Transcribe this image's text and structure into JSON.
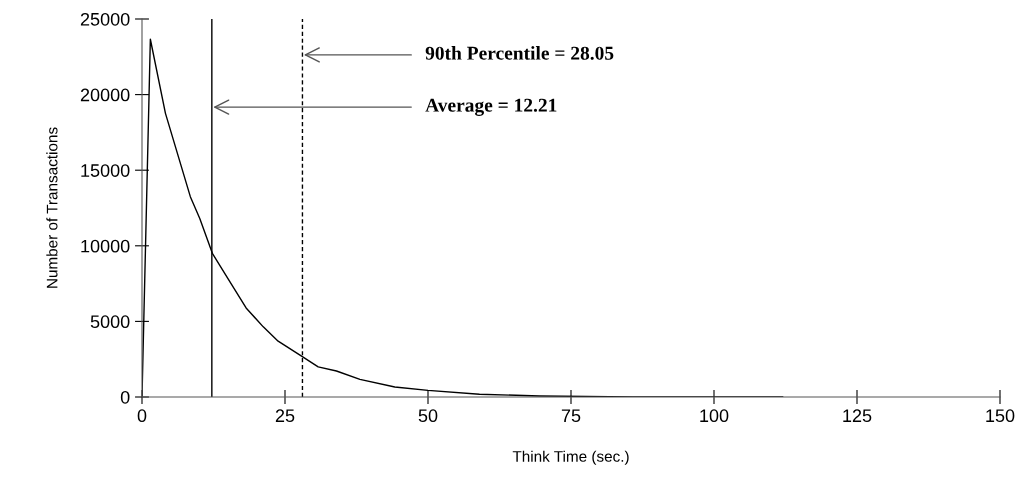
{
  "chart_data": {
    "type": "line",
    "xlabel": "Think Time (sec.)",
    "ylabel": "Number of Transactions",
    "x": [
      0,
      1.46,
      4.1,
      8.45,
      10.1,
      12.3,
      15.0,
      18.2,
      21.2,
      23.8,
      28.1,
      30.8,
      34.0,
      38.1,
      44.2,
      50,
      59,
      69.5,
      85.8,
      112
    ],
    "series": [
      {
        "color": "#000000",
        "values": [
          0,
          23660,
          18760,
          13250,
          11800,
          9500,
          7840,
          5890,
          4640,
          3690,
          2650,
          1990,
          1720,
          1170,
          660,
          440,
          180,
          70,
          0,
          0
        ]
      }
    ],
    "xlim": [
      0,
      150
    ],
    "xticks": [
      0,
      25,
      50,
      75,
      100,
      125,
      150
    ],
    "ylim": [
      0,
      25000
    ],
    "yticks": [
      0,
      5000,
      10000,
      15000,
      20000,
      25000
    ],
    "grid": false,
    "marker": "none",
    "line_style": "solid",
    "ref_lines": [
      {
        "axis": "x",
        "value": 12.21,
        "label": "Average = 12.21",
        "line_style": "solid",
        "color": "#000000"
      },
      {
        "axis": "x",
        "value": 28.05,
        "label": "90th Percentile = 28.05",
        "line_style": "dashed",
        "color": "#000000"
      }
    ]
  }
}
